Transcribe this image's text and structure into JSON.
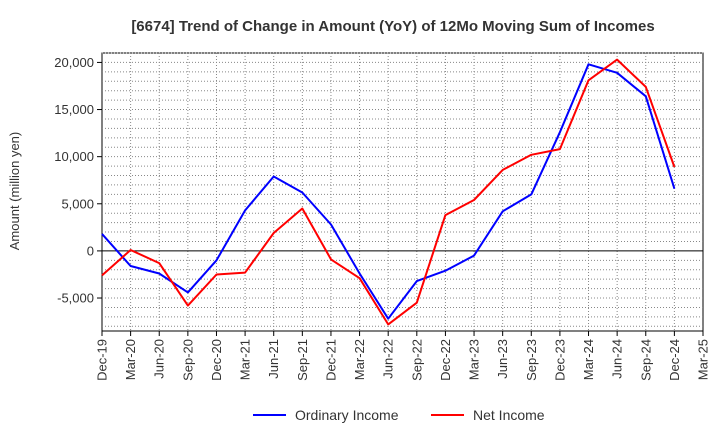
{
  "chart_data": {
    "type": "line",
    "title": "[6674]  Trend of Change in Amount (YoY) of 12Mo Moving Sum of Incomes",
    "xlabel": "",
    "ylabel": "Amount (million yen)",
    "categories": [
      "Dec-19",
      "Mar-20",
      "Jun-20",
      "Sep-20",
      "Dec-20",
      "Mar-21",
      "Jun-21",
      "Sep-21",
      "Dec-21",
      "Mar-22",
      "Jun-22",
      "Sep-22",
      "Dec-22",
      "Mar-23",
      "Jun-23",
      "Sep-23",
      "Dec-23",
      "Mar-24",
      "Jun-24",
      "Sep-24",
      "Dec-24",
      "Mar-25"
    ],
    "ylim": [
      -8500,
      21000
    ],
    "yticks": [
      -5000,
      0,
      5000,
      10000,
      15000,
      20000
    ],
    "ytick_labels": [
      "-5,000",
      "0",
      "5,000",
      "10,000",
      "15,000",
      "20,000"
    ],
    "grid": true,
    "legend_position": "bottom",
    "series": [
      {
        "name": "Ordinary Income",
        "color": "#0000ff",
        "values": [
          1800,
          -1600,
          -2400,
          -4400,
          -1000,
          4300,
          7900,
          6200,
          2800,
          -2400,
          -7200,
          -3200,
          -2100,
          -500,
          4200,
          6000,
          12600,
          19800,
          18900,
          16400,
          6600,
          null
        ]
      },
      {
        "name": "Net Income",
        "color": "#ff0000",
        "values": [
          -2600,
          100,
          -1300,
          -5800,
          -2500,
          -2300,
          1900,
          4500,
          -900,
          -2900,
          -7800,
          -5500,
          3800,
          5400,
          8600,
          10200,
          10800,
          18100,
          20300,
          17400,
          8900,
          null
        ]
      }
    ]
  }
}
